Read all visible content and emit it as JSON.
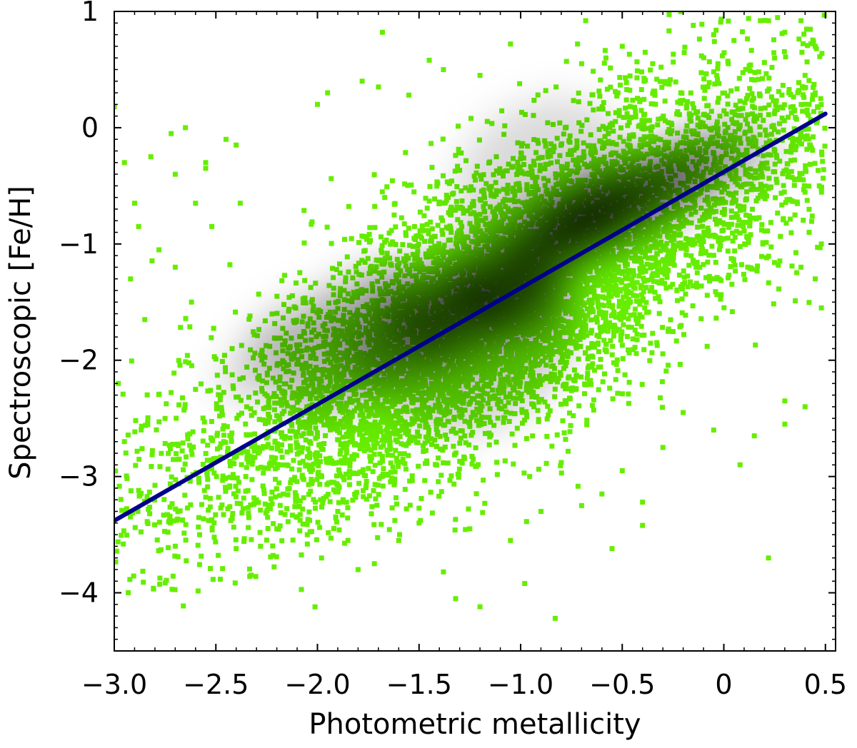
{
  "chart_data": {
    "type": "scatter",
    "title": "",
    "xlabel": "Photometric metallicity",
    "ylabel": "Spectroscopic [Fe/H]",
    "xlim": [
      -3.0,
      0.55
    ],
    "ylim": [
      -4.5,
      1.0
    ],
    "x_ticks": [
      -3.0,
      -2.5,
      -2.0,
      -1.5,
      -1.0,
      -0.5,
      0,
      0.5
    ],
    "x_tick_labels": [
      "−3.0",
      "−2.5",
      "−2.0",
      "−1.5",
      "−1.0",
      "−0.5",
      "0",
      "0.5"
    ],
    "y_ticks": [
      1,
      0,
      -1,
      -2,
      -3,
      -4
    ],
    "y_tick_labels": [
      "1",
      "0",
      "−1",
      "−2",
      "−3",
      "−4"
    ],
    "grid": false,
    "legend": "none",
    "point_color": "#66ee00",
    "density_color": "#000000",
    "line_color": "#00008b",
    "series": [
      {
        "type": "scatter",
        "density_samples": [
          [
            -2.25,
            -2.05,
            0.25,
            0.04,
            0.18
          ],
          [
            -2.1,
            -1.75,
            0.25,
            0.04,
            0.22
          ],
          [
            -1.9,
            -2.15,
            0.3,
            0.05,
            0.25
          ],
          [
            -1.75,
            -1.55,
            0.28,
            0.05,
            0.32
          ],
          [
            -1.6,
            -1.9,
            0.28,
            0.05,
            0.35
          ],
          [
            -1.45,
            -1.5,
            0.28,
            0.05,
            0.42
          ],
          [
            -1.3,
            -1.7,
            0.25,
            0.05,
            0.45
          ],
          [
            -1.15,
            -1.25,
            0.25,
            0.05,
            0.5
          ],
          [
            -1.0,
            -1.45,
            0.25,
            0.05,
            0.55
          ],
          [
            -0.85,
            -0.95,
            0.22,
            0.05,
            0.55
          ],
          [
            -0.7,
            -0.8,
            0.22,
            0.05,
            0.6
          ],
          [
            -0.55,
            -0.7,
            0.2,
            0.05,
            0.55
          ],
          [
            -0.4,
            -0.55,
            0.2,
            0.05,
            0.45
          ],
          [
            -0.25,
            -0.45,
            0.2,
            0.05,
            0.38
          ],
          [
            -0.1,
            -0.3,
            0.2,
            0.05,
            0.3
          ],
          [
            0.1,
            -0.2,
            0.2,
            0.05,
            0.18
          ],
          [
            -1.2,
            -1.95,
            0.5,
            0.1,
            0.2
          ],
          [
            -0.9,
            -0.4,
            0.45,
            0.1,
            0.15
          ]
        ]
      },
      {
        "type": "line",
        "x": [
          -3.0,
          0.5
        ],
        "y": [
          -3.38,
          0.12
        ]
      }
    ],
    "scatter_points": [
      [
        -3.0,
        0.18
      ],
      [
        -2.95,
        -0.3
      ],
      [
        -2.9,
        -0.65
      ],
      [
        -2.88,
        -0.85
      ],
      [
        -2.82,
        -0.25
      ],
      [
        -2.78,
        -1.05
      ],
      [
        -2.72,
        -0.05
      ],
      [
        -2.7,
        -0.4
      ],
      [
        -2.65,
        0.0
      ],
      [
        -2.6,
        -0.65
      ],
      [
        -2.55,
        -0.3
      ],
      [
        -2.55,
        -0.35
      ],
      [
        -2.45,
        -0.1
      ],
      [
        -2.4,
        -0.15
      ],
      [
        -2.38,
        -0.65
      ],
      [
        -1.68,
        0.82
      ],
      [
        -1.45,
        0.58
      ],
      [
        -1.05,
        0.72
      ],
      [
        -0.72,
        0.72
      ],
      [
        -0.7,
        0.55
      ],
      [
        -0.68,
        0.92
      ],
      [
        -0.58,
        0.6
      ],
      [
        -0.5,
        0.7
      ],
      [
        -0.35,
        0.55
      ],
      [
        -0.15,
        0.88
      ],
      [
        -0.05,
        0.8
      ],
      [
        0.05,
        0.75
      ],
      [
        0.18,
        0.92
      ],
      [
        0.22,
        0.92
      ],
      [
        0.3,
        0.82
      ],
      [
        0.38,
        0.92
      ],
      [
        0.45,
        0.7
      ],
      [
        0.4,
        0.45
      ],
      [
        0.25,
        0.6
      ],
      [
        -1.2,
        0.45
      ],
      [
        -1.7,
        0.35
      ],
      [
        -2.0,
        0.2
      ],
      [
        -1.95,
        0.3
      ],
      [
        -1.78,
        0.4
      ],
      [
        -1.55,
        0.28
      ],
      [
        -1.38,
        0.5
      ],
      [
        -2.28,
        -3.6
      ],
      [
        -2.58,
        -3.5
      ],
      [
        -1.98,
        -3.7
      ],
      [
        -1.8,
        -3.8
      ],
      [
        -1.72,
        -3.75
      ],
      [
        -1.38,
        -3.82
      ],
      [
        -1.2,
        -4.12
      ],
      [
        -1.32,
        -4.05
      ],
      [
        -0.98,
        -3.92
      ],
      [
        -0.83,
        -4.22
      ],
      [
        -0.4,
        -3.22
      ],
      [
        -0.4,
        -3.42
      ],
      [
        -0.55,
        -3.62
      ],
      [
        0.22,
        -3.7
      ],
      [
        0.3,
        -2.55
      ],
      [
        0.4,
        -2.4
      ],
      [
        0.3,
        -2.35
      ],
      [
        0.08,
        -2.9
      ],
      [
        0.15,
        -2.65
      ],
      [
        -0.05,
        -2.6
      ],
      [
        -1.6,
        -3.55
      ],
      [
        -1.5,
        -3.4
      ],
      [
        -2.05,
        -3.5
      ],
      [
        -2.1,
        -3.35
      ],
      [
        -2.3,
        -3.2
      ],
      [
        -2.2,
        -3.45
      ],
      [
        -2.45,
        -3.1
      ],
      [
        -1.9,
        -3.3
      ],
      [
        -1.85,
        -3.55
      ],
      [
        -1.25,
        -3.45
      ],
      [
        -1.05,
        -3.55
      ],
      [
        -0.9,
        -3.3
      ],
      [
        -0.7,
        -3.25
      ],
      [
        -0.6,
        -3.15
      ],
      [
        -0.5,
        -2.95
      ],
      [
        -0.3,
        -2.75
      ],
      [
        -0.2,
        -2.45
      ],
      [
        -2.95,
        -2.7
      ],
      [
        -2.98,
        -2.2
      ],
      [
        -2.92,
        -1.3
      ],
      [
        -2.85,
        -1.65
      ],
      [
        -2.75,
        -2.5
      ],
      [
        -2.7,
        -1.2
      ],
      [
        -2.68,
        -2.85
      ],
      [
        -2.62,
        -1.5
      ],
      [
        -2.6,
        -2.25
      ],
      [
        -2.52,
        -0.85
      ],
      [
        -2.48,
        -2.75
      ],
      [
        -2.42,
        -1.9
      ],
      [
        0.48,
        -1.0
      ],
      [
        0.48,
        -1.55
      ],
      [
        0.47,
        -0.5
      ],
      [
        0.45,
        0.3
      ],
      [
        0.45,
        -1.3
      ],
      [
        0.42,
        -0.9
      ],
      [
        0.42,
        0.2
      ],
      [
        0.38,
        -1.2
      ],
      [
        0.35,
        -0.75
      ],
      [
        0.32,
        0.3
      ]
    ]
  }
}
